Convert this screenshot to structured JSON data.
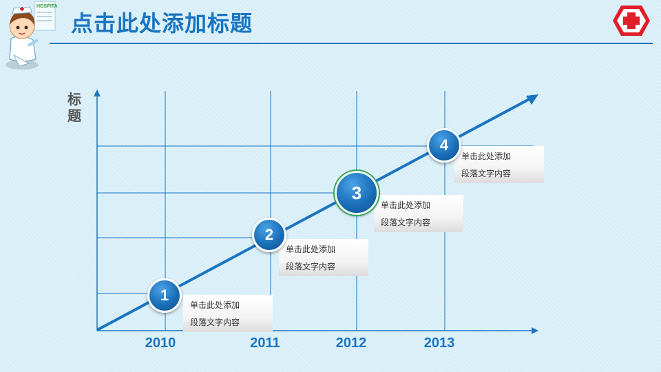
{
  "header": {
    "title": "点击此处添加标题"
  },
  "colors": {
    "accent": "#1a74c0",
    "background": "#d7eef8",
    "logo_red": "#e01f2a"
  },
  "icons": {
    "mascot": "nurse-mascot-icon",
    "logo": "red-cross-icon"
  },
  "chart_data": {
    "type": "line",
    "ylabel": "标题",
    "categories": [
      "2010",
      "2011",
      "2012",
      "2013"
    ],
    "steps": [
      {
        "number": "1",
        "line1": "单击此处添加",
        "line2": "段落文字内容"
      },
      {
        "number": "2",
        "line1": "单击此处添加",
        "line2": "段落文字内容"
      },
      {
        "number": "3",
        "line1": "单击此处添加",
        "line2": "段落文字内容"
      },
      {
        "number": "4",
        "line1": "单击此处添加",
        "line2": "段落文字内容"
      }
    ]
  }
}
